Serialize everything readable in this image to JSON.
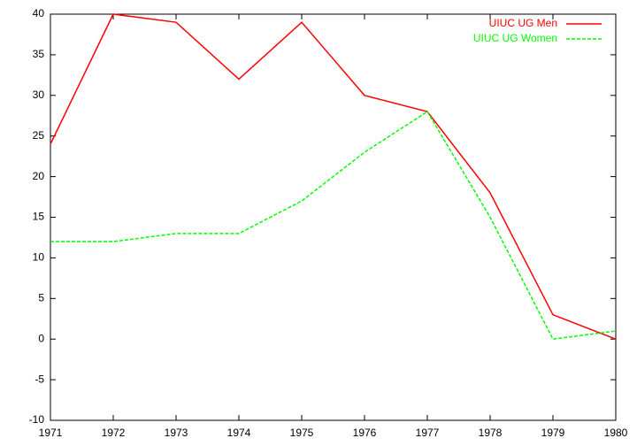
{
  "chart_data": {
    "type": "line",
    "x": [
      1971,
      1972,
      1973,
      1974,
      1975,
      1976,
      1977,
      1978,
      1979,
      1980
    ],
    "series": [
      {
        "name": "UIUC UG Men",
        "color": "#ff0000",
        "dash": false,
        "values": [
          24,
          40,
          39,
          32,
          39,
          30,
          28,
          18,
          3,
          0
        ]
      },
      {
        "name": "UIUC UG Women",
        "color": "#00ff00",
        "dash": true,
        "values": [
          12,
          12,
          13,
          13,
          17,
          23,
          28,
          15,
          0,
          1
        ]
      }
    ],
    "xlim": [
      1971,
      1980
    ],
    "xticks": [
      1971,
      1972,
      1973,
      1974,
      1975,
      1976,
      1977,
      1978,
      1979,
      1980
    ],
    "ylim": [
      -10,
      40
    ],
    "yticks": [
      -10,
      -5,
      0,
      5,
      10,
      15,
      20,
      25,
      30,
      35,
      40
    ],
    "grid": false,
    "legend": "top-right"
  }
}
